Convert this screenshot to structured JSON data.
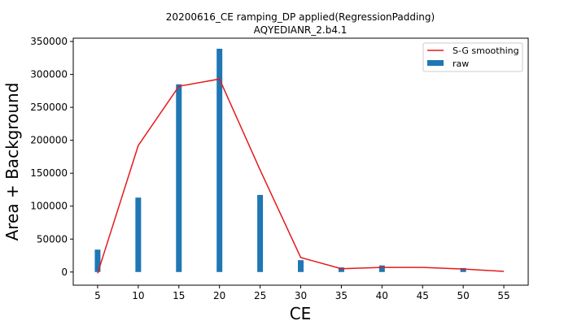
{
  "chart_data": {
    "type": "bar",
    "title": "20200616_CE ramping_DP applied(RegressionPadding)",
    "subtitle": "AQYEDIANR_2.b4.1",
    "xlabel": "CE",
    "ylabel": "Area + Background",
    "xlim": [
      2,
      58
    ],
    "ylim": [
      -20000,
      355000
    ],
    "xticks": [
      5,
      10,
      15,
      20,
      25,
      30,
      35,
      40,
      45,
      50,
      55
    ],
    "yticks": [
      0,
      50000,
      100000,
      150000,
      200000,
      250000,
      300000,
      350000
    ],
    "legend_position": "top-right",
    "grid": false,
    "series": [
      {
        "name": "raw",
        "kind": "bar",
        "color": "#1f77b4",
        "x": [
          5,
          10,
          15,
          20,
          25,
          30,
          35,
          40,
          50
        ],
        "values": [
          34000,
          113000,
          285000,
          339000,
          117000,
          18000,
          7000,
          10000,
          6000
        ]
      },
      {
        "name": "S-G smoothing",
        "kind": "line",
        "color": "#e41a1c",
        "x": [
          5,
          10,
          15,
          20,
          25,
          30,
          35,
          40,
          45,
          50,
          55
        ],
        "values": [
          -2000,
          192000,
          282000,
          293000,
          155000,
          22000,
          5000,
          7000,
          7000,
          4500,
          1000
        ]
      }
    ]
  }
}
